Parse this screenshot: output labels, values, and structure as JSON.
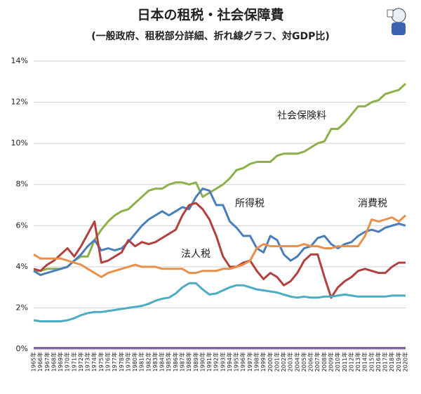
{
  "chart_data": {
    "type": "line",
    "title": "日本の租税・社会保障費",
    "subtitle": "(一般政府、租税部分詳細、折れ線グラフ、対GDP比)",
    "categories": [
      "1965年",
      "1966年",
      "1967年",
      "1968年",
      "1969年",
      "1970年",
      "1971年",
      "1972年",
      "1973年",
      "1974年",
      "1975年",
      "1976年",
      "1977年",
      "1978年",
      "1979年",
      "1980年",
      "1981年",
      "1982年",
      "1983年",
      "1984年",
      "1985年",
      "1986年",
      "1987年",
      "1988年",
      "1989年",
      "1990年",
      "1991年",
      "1992年",
      "1993年",
      "1994年",
      "1995年",
      "1996年",
      "1997年",
      "1998年",
      "1999年",
      "2000年",
      "2001年",
      "2002年",
      "2003年",
      "2004年",
      "2005年",
      "2006年",
      "2007年",
      "2008年",
      "2009年",
      "2010年",
      "2011年",
      "2012年",
      "2013年",
      "2014年",
      "2015年",
      "2016年",
      "2017年",
      "2018年",
      "2019年",
      "2020年"
    ],
    "ylim": [
      0,
      14
    ],
    "yticks": [
      {
        "value": 0,
        "label": "0%"
      },
      {
        "value": 2,
        "label": "2%"
      },
      {
        "value": 4,
        "label": "4%"
      },
      {
        "value": 6,
        "label": "6%"
      },
      {
        "value": 8,
        "label": "8%"
      },
      {
        "value": 10,
        "label": "10%"
      },
      {
        "value": 12,
        "label": "12%"
      },
      {
        "value": 14,
        "label": "14%"
      }
    ],
    "grid": true,
    "series": [
      {
        "name": "社会保険料",
        "color": "#8cb04a",
        "values": [
          3.8,
          3.8,
          3.9,
          3.9,
          3.9,
          4.0,
          4.3,
          4.5,
          4.5,
          5.3,
          5.8,
          6.2,
          6.5,
          6.7,
          6.8,
          7.1,
          7.4,
          7.7,
          7.8,
          7.8,
          8.0,
          8.1,
          8.1,
          8.0,
          8.1,
          7.4,
          7.6,
          7.8,
          8.0,
          8.3,
          8.7,
          8.8,
          9.0,
          9.1,
          9.1,
          9.1,
          9.4,
          9.5,
          9.5,
          9.5,
          9.6,
          9.8,
          10.0,
          10.1,
          10.7,
          10.7,
          11.0,
          11.4,
          11.8,
          11.8,
          12.0,
          12.1,
          12.4,
          12.5,
          12.6,
          12.9
        ]
      },
      {
        "name": "所得税",
        "color": "#4a7ebb",
        "values": [
          3.8,
          3.6,
          3.7,
          3.8,
          3.9,
          4.0,
          4.3,
          4.6,
          5.0,
          5.3,
          4.8,
          4.9,
          4.8,
          4.9,
          5.2,
          5.6,
          6.0,
          6.3,
          6.5,
          6.7,
          6.5,
          6.7,
          6.9,
          6.8,
          7.4,
          7.8,
          7.7,
          7.0,
          7.0,
          6.2,
          5.9,
          5.5,
          5.5,
          4.9,
          4.7,
          5.5,
          5.3,
          4.6,
          4.3,
          4.5,
          4.9,
          5.0,
          5.4,
          5.5,
          5.1,
          4.9,
          5.1,
          5.2,
          5.5,
          5.7,
          5.8,
          5.7,
          5.9,
          6.0,
          6.1,
          6.0
        ]
      },
      {
        "name": "法人税",
        "color": "#b0413e",
        "values": [
          3.9,
          3.8,
          4.1,
          4.3,
          4.6,
          4.9,
          4.5,
          5.0,
          5.6,
          6.2,
          4.2,
          4.3,
          4.5,
          4.7,
          5.3,
          5.0,
          5.2,
          5.1,
          5.2,
          5.4,
          5.6,
          5.8,
          6.5,
          7.0,
          7.1,
          6.8,
          6.3,
          5.5,
          4.5,
          4.0,
          4.0,
          4.2,
          4.3,
          3.8,
          3.4,
          3.7,
          3.5,
          3.1,
          3.3,
          3.7,
          4.3,
          4.6,
          4.6,
          3.5,
          2.5,
          3.0,
          3.3,
          3.5,
          3.8,
          3.9,
          3.8,
          3.7,
          3.7,
          4.0,
          4.2,
          4.2
        ]
      },
      {
        "name": "消費税",
        "color": "#e8904a",
        "values": [
          4.6,
          4.4,
          4.4,
          4.4,
          4.4,
          4.3,
          4.2,
          4.1,
          3.9,
          3.7,
          3.5,
          3.7,
          3.8,
          3.9,
          4.0,
          4.1,
          4.0,
          4.0,
          4.0,
          3.9,
          3.9,
          3.9,
          3.9,
          3.7,
          3.7,
          3.8,
          3.8,
          3.8,
          3.9,
          3.9,
          4.0,
          4.1,
          4.3,
          4.9,
          5.1,
          5.0,
          5.0,
          5.0,
          5.0,
          5.0,
          5.1,
          5.0,
          5.0,
          4.9,
          4.9,
          5.0,
          5.0,
          5.0,
          5.0,
          5.5,
          6.3,
          6.2,
          6.3,
          6.4,
          6.2,
          6.5
        ]
      },
      {
        "color": "#4bacc6",
        "values": [
          1.4,
          1.35,
          1.35,
          1.35,
          1.35,
          1.4,
          1.5,
          1.65,
          1.75,
          1.8,
          1.8,
          1.85,
          1.9,
          1.95,
          2.0,
          2.05,
          2.1,
          2.2,
          2.35,
          2.45,
          2.5,
          2.7,
          3.0,
          3.2,
          3.2,
          2.9,
          2.65,
          2.7,
          2.85,
          3.0,
          3.1,
          3.1,
          3.0,
          2.9,
          2.85,
          2.8,
          2.75,
          2.65,
          2.55,
          2.5,
          2.55,
          2.5,
          2.5,
          2.55,
          2.55,
          2.6,
          2.65,
          2.6,
          2.55,
          2.55,
          2.55,
          2.55,
          2.55,
          2.6,
          2.6,
          2.6
        ]
      },
      {
        "color": "#8064a2",
        "values": [
          0.05,
          0.05,
          0.05,
          0.05,
          0.05,
          0.05,
          0.05,
          0.05,
          0.05,
          0.05,
          0.05,
          0.05,
          0.05,
          0.05,
          0.05,
          0.05,
          0.05,
          0.05,
          0.05,
          0.05,
          0.05,
          0.05,
          0.05,
          0.05,
          0.05,
          0.05,
          0.05,
          0.05,
          0.05,
          0.05,
          0.05,
          0.05,
          0.05,
          0.05,
          0.05,
          0.05,
          0.05,
          0.05,
          0.05,
          0.05,
          0.05,
          0.05,
          0.05,
          0.05,
          0.05,
          0.05,
          0.05,
          0.05,
          0.05,
          0.05,
          0.05,
          0.05,
          0.05,
          0.05,
          0.05,
          0.05
        ]
      }
    ]
  }
}
